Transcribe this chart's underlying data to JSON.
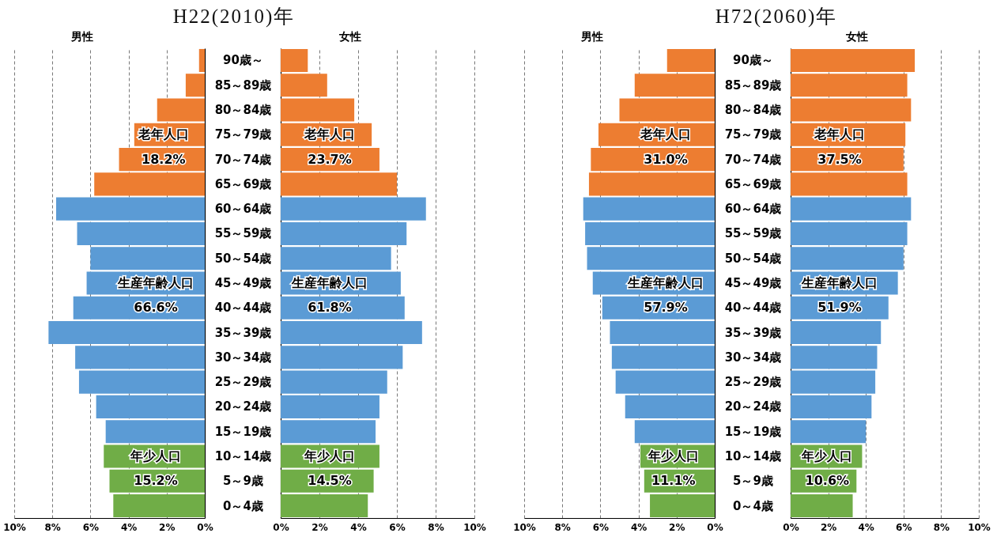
{
  "chart_data": [
    {
      "type": "bar",
      "title": "H22(2010)年",
      "subtitle": "男性",
      "orientation": "horizontal",
      "categories": [
        null,
        null,
        null,
        null,
        null,
        null,
        null,
        null,
        null,
        null,
        null,
        null,
        null,
        null,
        null,
        null,
        null,
        null,
        null
      ],
      "values": [
        0.3,
        1.0,
        2.5,
        3.7,
        4.5,
        5.8,
        7.8,
        6.7,
        6.0,
        6.2,
        6.9,
        8.2,
        6.8,
        6.6,
        5.7,
        5.2,
        5.3,
        5.0,
        4.8
      ],
      "colors": [
        "#ed7d31",
        "#ed7d31",
        "#ed7d31",
        "#ed7d31",
        "#ed7d31",
        "#ed7d31",
        "#5b9bd5",
        "#5b9bd5",
        "#5b9bd5",
        "#5b9bd5",
        "#5b9bd5",
        "#5b9bd5",
        "#5b9bd5",
        "#5b9bd5",
        "#5b9bd5",
        "#5b9bd5",
        "#70ad47",
        "#70ad47",
        "#70ad47"
      ],
      "xlim": [
        10,
        0
      ],
      "xticks": [
        {
          "value": 10,
          "label": "10%"
        },
        {
          "value": 8,
          "label": "8%"
        },
        {
          "value": 6,
          "label": "6%"
        },
        {
          "value": 4,
          "label": "4%"
        },
        {
          "value": 2,
          "label": "2%"
        },
        {
          "value": 0,
          "label": "0%"
        }
      ],
      "grid": "x",
      "annotations": [
        "老年人口",
        "18.2%",
        "生産年齢人口",
        "66.6%",
        "年少人口",
        "15.2%"
      ]
    },
    {
      "type": "bar",
      "subtitle": "女性",
      "orientation": "horizontal",
      "categories": [
        "90歳～",
        "85～89歳",
        "80～84歳",
        "75～79歳",
        "70～74歳",
        "65～69歳",
        "60～64歳",
        "55～59歳",
        "50～54歳",
        "45～49歳",
        "40～44歳",
        "35～39歳",
        "30～34歳",
        "25～29歳",
        "20～24歳",
        "15～19歳",
        "10～14歳",
        "5～9歳",
        "0～4歳"
      ],
      "values": [
        1.4,
        2.4,
        3.8,
        4.7,
        5.1,
        6.0,
        7.5,
        6.5,
        5.7,
        6.2,
        6.4,
        7.3,
        6.3,
        5.5,
        5.1,
        4.9,
        5.1,
        4.8,
        4.5
      ],
      "colors": [
        "#ed7d31",
        "#ed7d31",
        "#ed7d31",
        "#ed7d31",
        "#ed7d31",
        "#ed7d31",
        "#5b9bd5",
        "#5b9bd5",
        "#5b9bd5",
        "#5b9bd5",
        "#5b9bd5",
        "#5b9bd5",
        "#5b9bd5",
        "#5b9bd5",
        "#5b9bd5",
        "#5b9bd5",
        "#70ad47",
        "#70ad47",
        "#70ad47"
      ],
      "xlim": [
        0,
        10
      ],
      "xticks": [
        {
          "value": 0,
          "label": "0%"
        },
        {
          "value": 2,
          "label": "2%"
        },
        {
          "value": 4,
          "label": "4%"
        },
        {
          "value": 6,
          "label": "6%"
        },
        {
          "value": 8,
          "label": "8%"
        },
        {
          "value": 10,
          "label": "10%"
        }
      ],
      "grid": "x",
      "annotations": [
        "老年人口",
        "23.7%",
        "生産年齢人口",
        "61.8%",
        "年少人口",
        "14.5%"
      ]
    },
    {
      "type": "bar",
      "title": "H72(2060)年",
      "subtitle": "男性",
      "orientation": "horizontal",
      "categories": [
        null,
        null,
        null,
        null,
        null,
        null,
        null,
        null,
        null,
        null,
        null,
        null,
        null,
        null,
        null,
        null,
        null,
        null,
        null
      ],
      "values": [
        2.5,
        4.2,
        5.0,
        6.1,
        6.5,
        6.6,
        6.9,
        6.8,
        6.7,
        6.4,
        5.9,
        5.5,
        5.4,
        5.2,
        4.7,
        4.2,
        3.9,
        3.7,
        3.4
      ],
      "colors": [
        "#ed7d31",
        "#ed7d31",
        "#ed7d31",
        "#ed7d31",
        "#ed7d31",
        "#ed7d31",
        "#5b9bd5",
        "#5b9bd5",
        "#5b9bd5",
        "#5b9bd5",
        "#5b9bd5",
        "#5b9bd5",
        "#5b9bd5",
        "#5b9bd5",
        "#5b9bd5",
        "#5b9bd5",
        "#70ad47",
        "#70ad47",
        "#70ad47"
      ],
      "xlim": [
        10,
        0
      ],
      "xticks": [
        {
          "value": 10,
          "label": "10%"
        },
        {
          "value": 8,
          "label": "8%"
        },
        {
          "value": 6,
          "label": "6%"
        },
        {
          "value": 4,
          "label": "4%"
        },
        {
          "value": 2,
          "label": "2%"
        },
        {
          "value": 0,
          "label": "0%"
        }
      ],
      "grid": "x",
      "annotations": [
        "老年人口",
        "31.0%",
        "生産年齢人口",
        "57.9%",
        "年少人口",
        "11.1%"
      ]
    },
    {
      "type": "bar",
      "subtitle": "女性",
      "orientation": "horizontal",
      "categories": [
        "90歳～",
        "85～89歳",
        "80～84歳",
        "75～79歳",
        "70～74歳",
        "65～69歳",
        "60～64歳",
        "55～59歳",
        "50～54歳",
        "45～49歳",
        "40～44歳",
        "35～39歳",
        "30～34歳",
        "25～29歳",
        "20～24歳",
        "15～19歳",
        "10～14歳",
        "5～9歳",
        "0～4歳"
      ],
      "values": [
        6.6,
        6.2,
        6.4,
        6.1,
        6.0,
        6.2,
        6.4,
        6.2,
        6.0,
        5.7,
        5.2,
        4.8,
        4.6,
        4.5,
        4.3,
        4.0,
        3.8,
        3.5,
        3.3
      ],
      "colors": [
        "#ed7d31",
        "#ed7d31",
        "#ed7d31",
        "#ed7d31",
        "#ed7d31",
        "#ed7d31",
        "#5b9bd5",
        "#5b9bd5",
        "#5b9bd5",
        "#5b9bd5",
        "#5b9bd5",
        "#5b9bd5",
        "#5b9bd5",
        "#5b9bd5",
        "#5b9bd5",
        "#5b9bd5",
        "#70ad47",
        "#70ad47",
        "#70ad47"
      ],
      "xlim": [
        0,
        10
      ],
      "xticks": [
        {
          "value": 0,
          "label": "0%"
        },
        {
          "value": 2,
          "label": "2%"
        },
        {
          "value": 4,
          "label": "4%"
        },
        {
          "value": 6,
          "label": "6%"
        },
        {
          "value": 8,
          "label": "8%"
        },
        {
          "value": 10,
          "label": "10%"
        }
      ],
      "grid": "x",
      "annotations": [
        "老年人口",
        "37.5%",
        "生産年齢人口",
        "51.9%",
        "年少人口",
        "10.6%"
      ]
    }
  ]
}
